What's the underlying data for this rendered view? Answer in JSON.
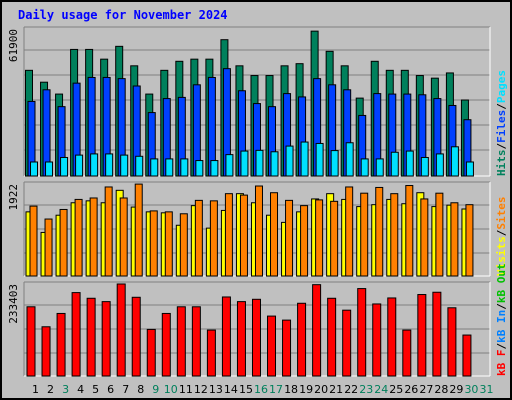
{
  "title": "Daily usage for November 2024",
  "colors": {
    "hits": "#00805c",
    "files": "#0040ff",
    "pages": "#00e0ff",
    "visits": "#ffff00",
    "sites": "#ff8000",
    "kb_f": "#ff0000",
    "kb_in": "#0080ff",
    "kb_out": "#00c000"
  },
  "chart_data": [
    {
      "type": "bar",
      "title": "Daily usage for November 2024",
      "categories": [
        "1",
        "2",
        "3",
        "4",
        "5",
        "6",
        "7",
        "8",
        "9",
        "10",
        "11",
        "12",
        "13",
        "14",
        "15",
        "16",
        "17",
        "18",
        "19",
        "20",
        "21",
        "22",
        "23",
        "24",
        "25",
        "26",
        "27",
        "28",
        "29",
        "30",
        "31"
      ],
      "weekend_days": [
        "3",
        "9",
        "10",
        "16",
        "17",
        "23",
        "24",
        "30",
        "31"
      ],
      "ymax_label": "61900",
      "ylim": [
        0,
        61900
      ],
      "grid": true,
      "legend": [
        {
          "name": "Hits",
          "color": "#00805c"
        },
        {
          "name": "Files",
          "color": "#0040ff"
        },
        {
          "name": "Pages",
          "color": "#00e0ff"
        }
      ],
      "series": [
        {
          "name": "Hits",
          "values": [
            44500,
            39500,
            34500,
            53300,
            53300,
            49200,
            54600,
            46400,
            34500,
            44500,
            48300,
            49200,
            49200,
            57400,
            46400,
            42300,
            42300,
            46400,
            47300,
            61000,
            52500,
            46400,
            32800,
            48300,
            44500,
            44500,
            42300,
            41200,
            43400,
            32000,
            0
          ]
        },
        {
          "name": "Files",
          "values": [
            31400,
            36300,
            29200,
            39100,
            41500,
            41500,
            41000,
            37900,
            26700,
            32600,
            33100,
            38400,
            41500,
            45200,
            35900,
            30500,
            29200,
            34700,
            33300,
            41000,
            38400,
            36300,
            25500,
            34700,
            34500,
            34500,
            34200,
            32600,
            29700,
            23700,
            0
          ]
        },
        {
          "name": "Pages",
          "values": [
            5900,
            5900,
            7800,
            8800,
            9300,
            9300,
            8800,
            8300,
            7200,
            7200,
            7200,
            6500,
            6500,
            9000,
            10500,
            10800,
            10200,
            12600,
            14300,
            13700,
            10700,
            14000,
            7200,
            7200,
            10000,
            10500,
            7800,
            9300,
            12300,
            5900,
            0
          ]
        }
      ]
    },
    {
      "type": "bar",
      "ymax_label": "1922",
      "ylim": [
        0,
        1922
      ],
      "grid": true,
      "legend": [
        {
          "name": "Visits",
          "color": "#ffff00"
        },
        {
          "name": "Sites",
          "color": "#ff8000"
        }
      ],
      "series": [
        {
          "name": "Visits",
          "values": [
            1340,
            910,
            1270,
            1530,
            1570,
            1530,
            1790,
            1440,
            1340,
            1320,
            1060,
            1470,
            1000,
            1370,
            1720,
            1530,
            1270,
            1120,
            1340,
            1610,
            1720,
            1600,
            1450,
            1490,
            1600,
            1510,
            1740,
            1450,
            1480,
            1400,
            0
          ]
        },
        {
          "name": "Sites",
          "values": [
            1460,
            1190,
            1390,
            1600,
            1630,
            1860,
            1630,
            1920,
            1360,
            1340,
            1300,
            1580,
            1570,
            1720,
            1690,
            1880,
            1740,
            1580,
            1470,
            1590,
            1560,
            1860,
            1730,
            1850,
            1720,
            1890,
            1610,
            1730,
            1530,
            1490,
            0
          ]
        }
      ]
    },
    {
      "type": "bar",
      "ymax_label": "233403",
      "ylim": [
        0,
        233403
      ],
      "grid": true,
      "legend": [
        {
          "name": "kB F",
          "color": "#ff0000"
        },
        {
          "name": "kB In",
          "color": "#0080ff"
        },
        {
          "name": "kB Out",
          "color": "#00c000"
        }
      ],
      "series": [
        {
          "name": "kB F",
          "values": [
            175600,
            124900,
            158700,
            211600,
            197200,
            188700,
            233400,
            199700,
            118200,
            158700,
            175600,
            175600,
            116500,
            200500,
            188700,
            194600,
            152000,
            141800,
            184500,
            231700,
            197200,
            167000,
            221800,
            182800,
            198000,
            116500,
            206700,
            212500,
            173100,
            103900,
            0
          ]
        },
        {
          "name": "kB In",
          "values": [
            0,
            0,
            0,
            0,
            0,
            0,
            0,
            0,
            0,
            0,
            0,
            0,
            0,
            0,
            0,
            0,
            0,
            0,
            0,
            0,
            0,
            0,
            0,
            0,
            0,
            0,
            0,
            0,
            0,
            0,
            0
          ]
        },
        {
          "name": "kB Out",
          "values": [
            0,
            0,
            0,
            0,
            0,
            0,
            0,
            0,
            0,
            0,
            0,
            0,
            0,
            0,
            0,
            0,
            0,
            0,
            0,
            0,
            0,
            0,
            0,
            0,
            0,
            0,
            0,
            0,
            0,
            0,
            0
          ]
        }
      ]
    }
  ]
}
